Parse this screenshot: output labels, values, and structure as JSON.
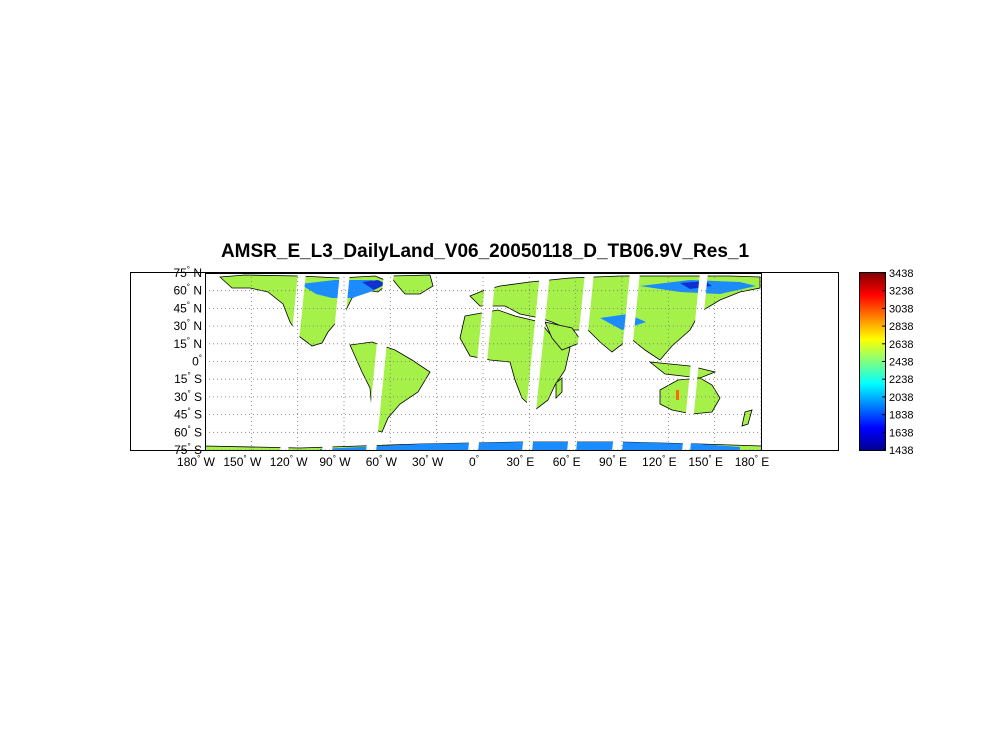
{
  "title": "AMSR_E_L3_DailyLand_V06_20050118_D_TB06.9V_Res_1",
  "map": {
    "projection": "equirectangular",
    "lon_range": [
      -180,
      180
    ],
    "lat_range": [
      -75,
      75
    ],
    "grid": true,
    "lon_ticks": [
      {
        "deg": "180",
        "hem": "W"
      },
      {
        "deg": "150",
        "hem": "W"
      },
      {
        "deg": "120",
        "hem": "W"
      },
      {
        "deg": "90",
        "hem": "W"
      },
      {
        "deg": "60",
        "hem": "W"
      },
      {
        "deg": "30",
        "hem": "W"
      },
      {
        "deg": "0",
        "hem": ""
      },
      {
        "deg": "30",
        "hem": "E"
      },
      {
        "deg": "60",
        "hem": "E"
      },
      {
        "deg": "90",
        "hem": "E"
      },
      {
        "deg": "120",
        "hem": "E"
      },
      {
        "deg": "150",
        "hem": "E"
      },
      {
        "deg": "180",
        "hem": "E"
      }
    ],
    "lat_ticks": [
      {
        "deg": "75",
        "hem": "N"
      },
      {
        "deg": "60",
        "hem": "N"
      },
      {
        "deg": "45",
        "hem": "N"
      },
      {
        "deg": "30",
        "hem": "N"
      },
      {
        "deg": "15",
        "hem": "N"
      },
      {
        "deg": "0",
        "hem": ""
      },
      {
        "deg": "15",
        "hem": "S"
      },
      {
        "deg": "30",
        "hem": "S"
      },
      {
        "deg": "45",
        "hem": "S"
      },
      {
        "deg": "60",
        "hem": "S"
      },
      {
        "deg": "75",
        "hem": "S"
      }
    ],
    "land_color": "#a6f04a",
    "cold_color": "#1a8cff",
    "colors": {
      "background": "#ffffff",
      "gridline": "#777777",
      "coastline": "#000000"
    }
  },
  "colorbar": {
    "ticks": [
      "3438",
      "3238",
      "3038",
      "2838",
      "2638",
      "2438",
      "2238",
      "2038",
      "1838",
      "1638",
      "1438"
    ],
    "min": 1438,
    "max": 3438,
    "colormap": "jet"
  }
}
